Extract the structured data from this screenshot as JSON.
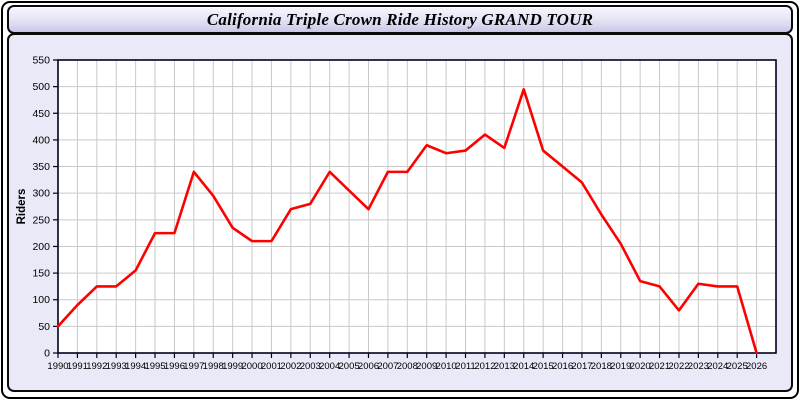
{
  "window": {
    "title": "California Triple Crown Ride History GRAND TOUR"
  },
  "chart_data": {
    "type": "line",
    "title": "California Triple Crown Ride History GRAND TOUR",
    "xlabel": "",
    "ylabel": "Riders",
    "categories": [
      "1990",
      "1991",
      "1992",
      "1993",
      "1994",
      "1995",
      "1996",
      "1997",
      "1998",
      "1999",
      "2000",
      "2001",
      "2002",
      "2003",
      "2004",
      "2005",
      "2006",
      "2007",
      "2008",
      "2009",
      "2010",
      "2011",
      "2012",
      "2013",
      "2014",
      "2015",
      "2016",
      "2017",
      "2018",
      "2019",
      "2020",
      "2021",
      "2022",
      "2023",
      "2024",
      "2025",
      "2026"
    ],
    "series": [
      {
        "name": "Riders",
        "color": "#ff0000",
        "values": [
          50,
          90,
          125,
          125,
          155,
          225,
          225,
          340,
          295,
          235,
          210,
          210,
          270,
          280,
          340,
          305,
          270,
          340,
          340,
          390,
          375,
          380,
          410,
          385,
          495,
          380,
          350,
          320,
          260,
          205,
          135,
          125,
          80,
          130,
          125,
          125,
          0
        ]
      }
    ],
    "ylim": [
      0,
      550
    ],
    "y_ticks": [
      0,
      50,
      100,
      150,
      200,
      250,
      300,
      350,
      400,
      450,
      500,
      550
    ],
    "grid": true,
    "legend_position": "none",
    "plot_background": "#ffffff",
    "panel_background": "#e9e9f8",
    "grid_color": "#c9c9c9",
    "axis_color": "#000022",
    "tick_label_color": "#000000"
  }
}
